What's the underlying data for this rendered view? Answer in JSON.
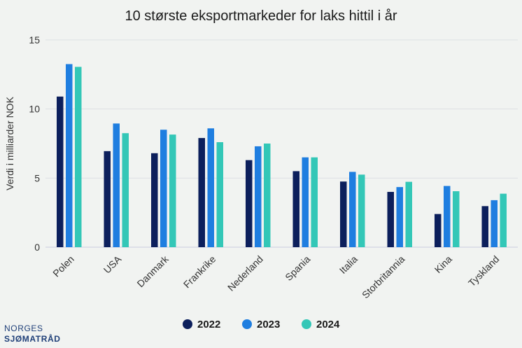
{
  "chart_data": {
    "type": "bar",
    "title": "10 største eksportmarkeder for laks hittil i år",
    "ylabel": "Verdi i milliarder NOK",
    "xlabel": "",
    "ylim": [
      0,
      15
    ],
    "yticks": [
      0,
      5,
      10,
      15
    ],
    "grid": true,
    "legend_position": "bottom",
    "categories": [
      "Polen",
      "USA",
      "Danmark",
      "Frankrike",
      "Nederland",
      "Spania",
      "Italia",
      "Storbritannia",
      "Kina",
      "Tyskland"
    ],
    "series": [
      {
        "name": "2022",
        "color": "#0c1f5c",
        "values": [
          10.9,
          6.95,
          6.8,
          7.9,
          6.3,
          5.5,
          4.75,
          4.0,
          2.4,
          2.97
        ]
      },
      {
        "name": "2023",
        "color": "#1f7ee0",
        "values": [
          13.25,
          8.95,
          8.5,
          8.6,
          7.3,
          6.5,
          5.45,
          4.35,
          4.43,
          3.4
        ]
      },
      {
        "name": "2024",
        "color": "#33c7b7",
        "values": [
          13.05,
          8.25,
          8.15,
          7.6,
          7.5,
          6.5,
          5.25,
          4.73,
          4.05,
          3.87
        ]
      }
    ]
  },
  "logo": {
    "line1": "NORGES",
    "line2": "SJØMATRÅD"
  }
}
